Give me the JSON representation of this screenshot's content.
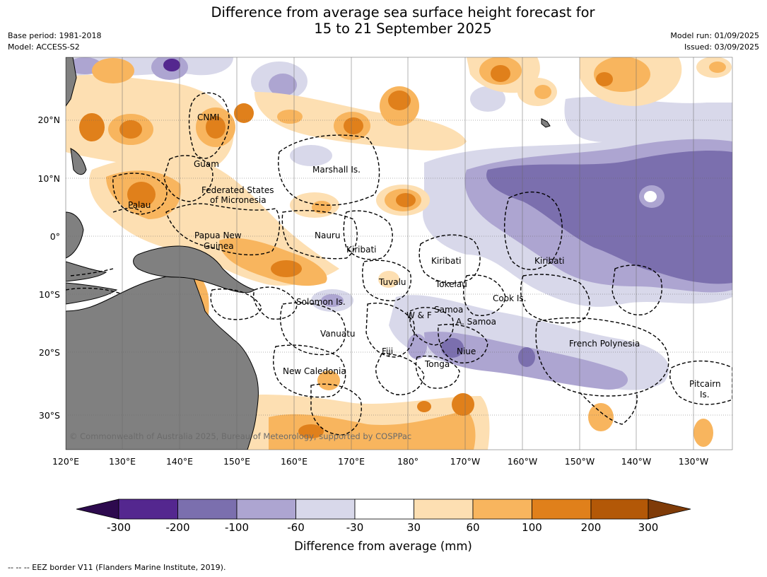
{
  "title_line1": "Difference from average sea surface height forecast for",
  "title_line2": "15 to 21 September 2025",
  "meta_left": [
    "Base period: 1981-2018",
    "Model: ACCESS-S2"
  ],
  "meta_right": [
    "Model run: 01/09/2025",
    "Issued: 03/09/2025"
  ],
  "copyright": "© Commonwealth of Australia 2025, Bureau of Meteorology, supported by COSPPac",
  "lon_ticks": [
    "120°E",
    "130°E",
    "140°E",
    "150°E",
    "160°E",
    "170°E",
    "180°",
    "170°W",
    "160°W",
    "150°W",
    "140°W",
    "130°W"
  ],
  "lat_ticks": [
    "20°N",
    "10°N",
    "0°",
    "10°S",
    "20°S",
    "30°S"
  ],
  "region_labels": [
    "CNMI",
    "Guam",
    "Marshall Is.",
    "Federated States",
    "of Micronesia",
    "Palau",
    "Papua New",
    "Guinea",
    "Nauru",
    "Kiribati",
    "Kiribati",
    "Kiribati",
    "Tuvalu",
    "Tokelau",
    "Solomon Is.",
    "Cook Is.",
    "Samoa",
    "W & F",
    "A. Samoa",
    "Vanuatu",
    "Fiji",
    "Niue",
    "French Polynesia",
    "Tonga",
    "New Caledonia",
    "Pitcairn",
    "Is."
  ],
  "colorbar": {
    "title": "Difference from average (mm)",
    "ticks": [
      "-300",
      "-200",
      "-100",
      "-60",
      "-30",
      "30",
      "60",
      "100",
      "200",
      "300"
    ],
    "colors": [
      "#2d0a4e",
      "#54278f",
      "#7b6fae",
      "#ada5d1",
      "#d8d8ea",
      "#ffffff",
      "#fddfb2",
      "#f8b55e",
      "#e0801b",
      "#b35807",
      "#7f3b08"
    ]
  },
  "colors": {
    "land": "#808080",
    "ocean": "#ffffff"
  },
  "footnote": "--  --  -- EEZ border V11 (Flanders Marine Institute, 2019)."
}
